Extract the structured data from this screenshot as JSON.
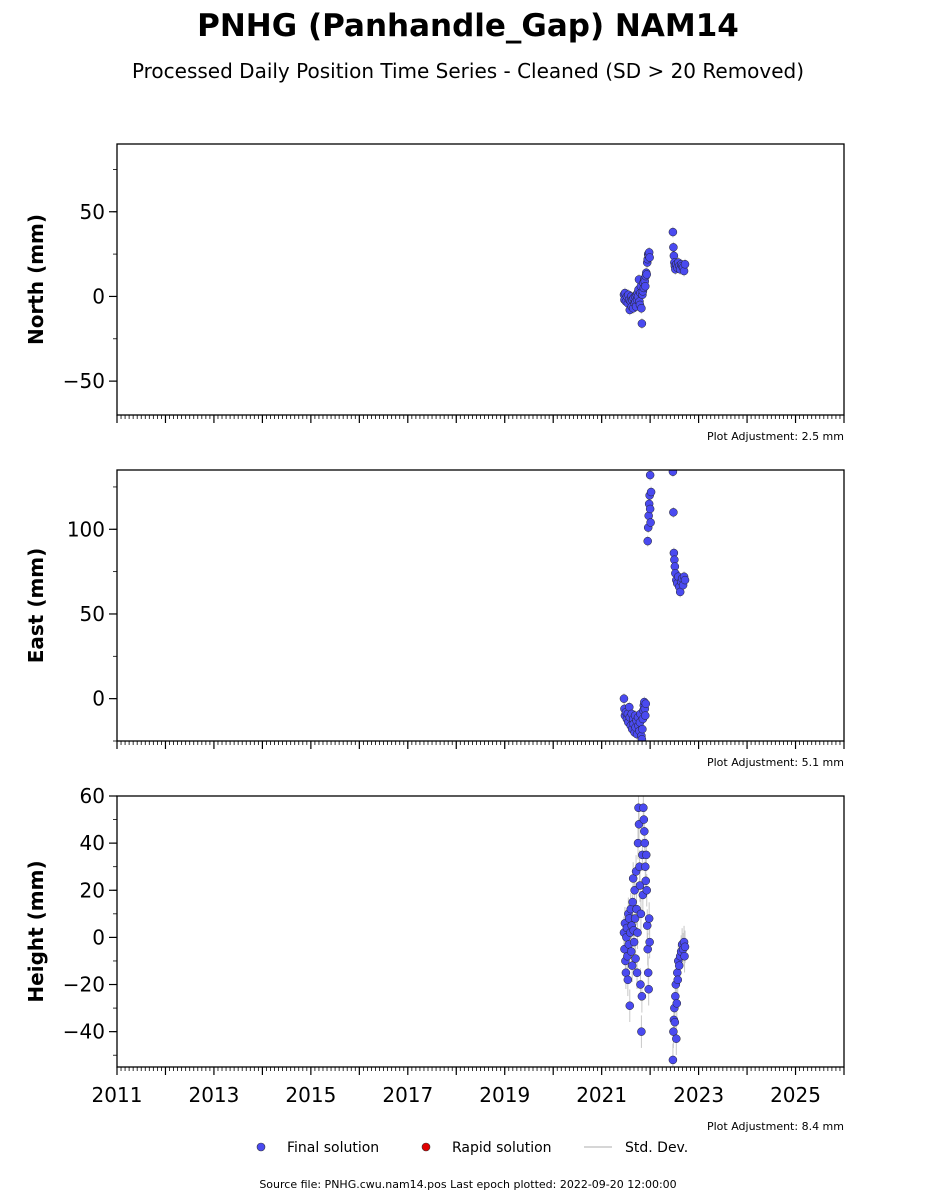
{
  "title": "PNHG (Panhandle_Gap) NAM14",
  "subtitle": "Processed Daily Position Time Series - Cleaned (SD > 20 Removed)",
  "source_note": "Source file: PNHG.cwu.nam14.pos  Last epoch plotted: 2022-09-20 12:00:00",
  "legend": {
    "final": "Final solution",
    "rapid": "Rapid solution",
    "std": "Std. Dev."
  },
  "colors": {
    "final": "#4a4af0",
    "rapid": "#e00000",
    "std": "#c8c8c8"
  },
  "chart_data": [
    {
      "type": "scatter",
      "ylabel": "North (mm)",
      "adjustment_note": "Plot Adjustment: 2.5 mm",
      "xlim": [
        2011,
        2026
      ],
      "ylim": [
        -70,
        90
      ],
      "xticks": [
        2011,
        2013,
        2015,
        2017,
        2019,
        2021,
        2023,
        2025
      ],
      "yticks": [
        -50,
        0,
        50
      ],
      "show_x_tick_labels": false,
      "points": [
        [
          2021.46,
          1
        ],
        [
          2021.47,
          -2
        ],
        [
          2021.48,
          2
        ],
        [
          2021.5,
          -3
        ],
        [
          2021.52,
          0
        ],
        [
          2021.54,
          -4
        ],
        [
          2021.55,
          1
        ],
        [
          2021.57,
          -2
        ],
        [
          2021.58,
          -8
        ],
        [
          2021.6,
          -3
        ],
        [
          2021.61,
          0
        ],
        [
          2021.62,
          -6
        ],
        [
          2021.63,
          -2
        ],
        [
          2021.65,
          -7
        ],
        [
          2021.66,
          -1
        ],
        [
          2021.68,
          -4
        ],
        [
          2021.69,
          0
        ],
        [
          2021.7,
          -3
        ],
        [
          2021.71,
          -6
        ],
        [
          2021.72,
          1
        ],
        [
          2021.73,
          -2
        ],
        [
          2021.74,
          2
        ],
        [
          2021.75,
          0
        ],
        [
          2021.76,
          4
        ],
        [
          2021.77,
          10
        ],
        [
          2021.78,
          -3
        ],
        [
          2021.79,
          -5
        ],
        [
          2021.8,
          2
        ],
        [
          2021.81,
          6
        ],
        [
          2021.82,
          -7
        ],
        [
          2021.83,
          -16
        ],
        [
          2021.84,
          1
        ],
        [
          2021.85,
          3
        ],
        [
          2021.86,
          8
        ],
        [
          2021.87,
          5
        ],
        [
          2021.88,
          10
        ],
        [
          2021.89,
          9
        ],
        [
          2021.9,
          6
        ],
        [
          2021.91,
          12
        ],
        [
          2021.92,
          14
        ],
        [
          2021.93,
          13
        ],
        [
          2021.94,
          20
        ],
        [
          2021.95,
          22
        ],
        [
          2021.96,
          25
        ],
        [
          2021.97,
          24
        ],
        [
          2021.98,
          26
        ],
        [
          2021.99,
          23
        ],
        [
          2022.47,
          38
        ],
        [
          2022.48,
          29
        ],
        [
          2022.49,
          24
        ],
        [
          2022.5,
          20
        ],
        [
          2022.51,
          18
        ],
        [
          2022.52,
          16
        ],
        [
          2022.54,
          19
        ],
        [
          2022.56,
          17
        ],
        [
          2022.58,
          20
        ],
        [
          2022.6,
          18
        ],
        [
          2022.62,
          16
        ],
        [
          2022.64,
          19
        ],
        [
          2022.66,
          18
        ],
        [
          2022.68,
          17
        ],
        [
          2022.7,
          15
        ],
        [
          2022.72,
          19
        ]
      ]
    },
    {
      "type": "scatter",
      "ylabel": "East (mm)",
      "adjustment_note": "Plot Adjustment: 5.1 mm",
      "xlim": [
        2011,
        2026
      ],
      "ylim": [
        -25,
        135
      ],
      "xticks": [
        2011,
        2013,
        2015,
        2017,
        2019,
        2021,
        2023,
        2025
      ],
      "yticks": [
        0,
        50,
        100
      ],
      "show_x_tick_labels": false,
      "points": [
        [
          2021.46,
          0
        ],
        [
          2021.47,
          -6
        ],
        [
          2021.48,
          -10
        ],
        [
          2021.5,
          -8
        ],
        [
          2021.52,
          -12
        ],
        [
          2021.54,
          -9
        ],
        [
          2021.55,
          -14
        ],
        [
          2021.57,
          -5
        ],
        [
          2021.58,
          -11
        ],
        [
          2021.6,
          -16
        ],
        [
          2021.62,
          -9
        ],
        [
          2021.63,
          -18
        ],
        [
          2021.65,
          -12
        ],
        [
          2021.66,
          -15
        ],
        [
          2021.68,
          -20
        ],
        [
          2021.69,
          -10
        ],
        [
          2021.7,
          -17
        ],
        [
          2021.72,
          -13
        ],
        [
          2021.73,
          -21
        ],
        [
          2021.75,
          -11
        ],
        [
          2021.76,
          -16
        ],
        [
          2021.78,
          -19
        ],
        [
          2021.79,
          -14
        ],
        [
          2021.8,
          -9
        ],
        [
          2021.82,
          -22
        ],
        [
          2021.83,
          -24
        ],
        [
          2021.84,
          -18
        ],
        [
          2021.85,
          -12
        ],
        [
          2021.86,
          -7
        ],
        [
          2021.87,
          -4
        ],
        [
          2021.88,
          -2
        ],
        [
          2021.89,
          -6
        ],
        [
          2021.9,
          -10
        ],
        [
          2021.91,
          -3
        ],
        [
          2021.95,
          93
        ],
        [
          2021.96,
          101
        ],
        [
          2021.97,
          108
        ],
        [
          2021.98,
          115
        ],
        [
          2021.99,
          120
        ],
        [
          2022.0,
          112
        ],
        [
          2022.01,
          104
        ],
        [
          2022.02,
          122
        ],
        [
          2022.0,
          132
        ],
        [
          2022.47,
          134
        ],
        [
          2022.48,
          110
        ],
        [
          2022.49,
          86
        ],
        [
          2022.5,
          82
        ],
        [
          2022.51,
          78
        ],
        [
          2022.52,
          74
        ],
        [
          2022.54,
          70
        ],
        [
          2022.56,
          68
        ],
        [
          2022.58,
          72
        ],
        [
          2022.6,
          66
        ],
        [
          2022.62,
          63
        ],
        [
          2022.64,
          69
        ],
        [
          2022.66,
          71
        ],
        [
          2022.68,
          67
        ],
        [
          2022.7,
          72
        ],
        [
          2022.72,
          70
        ]
      ]
    },
    {
      "type": "scatter",
      "ylabel": "Height (mm)",
      "adjustment_note": "Plot Adjustment: 8.4 mm",
      "xlim": [
        2011,
        2026
      ],
      "ylim": [
        -55,
        60
      ],
      "xticks": [
        2011,
        2013,
        2015,
        2017,
        2019,
        2021,
        2023,
        2025
      ],
      "xtick_labels": [
        "2011",
        "2013",
        "2015",
        "2017",
        "2019",
        "2021",
        "2023",
        "2025"
      ],
      "yticks": [
        -40,
        -20,
        0,
        20,
        40,
        60
      ],
      "show_x_tick_labels": true,
      "points": [
        [
          2021.46,
          2
        ],
        [
          2021.47,
          -5
        ],
        [
          2021.48,
          6
        ],
        [
          2021.49,
          -10
        ],
        [
          2021.5,
          -15
        ],
        [
          2021.51,
          0
        ],
        [
          2021.52,
          4
        ],
        [
          2021.53,
          -8
        ],
        [
          2021.54,
          -18
        ],
        [
          2021.55,
          10
        ],
        [
          2021.56,
          -3
        ],
        [
          2021.57,
          8
        ],
        [
          2021.58,
          -29
        ],
        [
          2021.59,
          2
        ],
        [
          2021.6,
          12
        ],
        [
          2021.61,
          -6
        ],
        [
          2021.62,
          5
        ],
        [
          2021.63,
          -12
        ],
        [
          2021.64,
          15
        ],
        [
          2021.65,
          25
        ],
        [
          2021.66,
          3
        ],
        [
          2021.67,
          -2
        ],
        [
          2021.68,
          20
        ],
        [
          2021.69,
          8
        ],
        [
          2021.7,
          -9
        ],
        [
          2021.71,
          28
        ],
        [
          2021.72,
          12
        ],
        [
          2021.73,
          -15
        ],
        [
          2021.74,
          2
        ],
        [
          2021.75,
          40
        ],
        [
          2021.76,
          55
        ],
        [
          2021.77,
          48
        ],
        [
          2021.78,
          30
        ],
        [
          2021.79,
          22
        ],
        [
          2021.8,
          -20
        ],
        [
          2021.81,
          10
        ],
        [
          2021.82,
          -40
        ],
        [
          2021.83,
          -25
        ],
        [
          2021.84,
          35
        ],
        [
          2021.85,
          18
        ],
        [
          2021.86,
          55
        ],
        [
          2021.87,
          50
        ],
        [
          2021.88,
          45
        ],
        [
          2021.89,
          40
        ],
        [
          2021.9,
          30
        ],
        [
          2021.91,
          24
        ],
        [
          2021.92,
          35
        ],
        [
          2021.93,
          20
        ],
        [
          2021.94,
          5
        ],
        [
          2021.95,
          -5
        ],
        [
          2021.96,
          -15
        ],
        [
          2021.97,
          -22
        ],
        [
          2021.98,
          8
        ],
        [
          2021.99,
          -2
        ],
        [
          2022.47,
          -52
        ],
        [
          2022.48,
          -40
        ],
        [
          2022.49,
          -35
        ],
        [
          2022.5,
          -30
        ],
        [
          2022.51,
          -36
        ],
        [
          2022.52,
          -25
        ],
        [
          2022.53,
          -20
        ],
        [
          2022.54,
          -43
        ],
        [
          2022.55,
          -28
        ],
        [
          2022.56,
          -15
        ],
        [
          2022.57,
          -18
        ],
        [
          2022.58,
          -10
        ],
        [
          2022.6,
          -12
        ],
        [
          2022.62,
          -8
        ],
        [
          2022.64,
          -6
        ],
        [
          2022.66,
          -3
        ],
        [
          2022.68,
          -5
        ],
        [
          2022.7,
          -2
        ],
        [
          2022.71,
          -8
        ],
        [
          2022.72,
          -4
        ]
      ]
    }
  ]
}
